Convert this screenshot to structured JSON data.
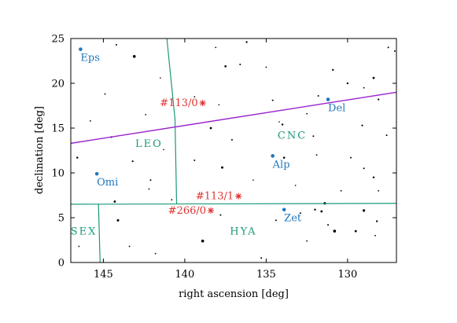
{
  "chart_data": {
    "type": "scatter",
    "xlabel": "right ascension [deg]",
    "ylabel": "declination [deg]",
    "xlim": [
      147,
      127
    ],
    "ylim": [
      0,
      25
    ],
    "x_ticks": [
      145,
      140,
      135,
      130
    ],
    "y_ticks": [
      0,
      5,
      10,
      15,
      20,
      25
    ],
    "grid": false,
    "colors": {
      "constellation": "#1a9a7a",
      "ecliptic": "#9a22cc",
      "named_star": "#2277bb",
      "marker": "#e03030",
      "field_star": "#000000"
    },
    "ecliptic_line": [
      [
        147,
        13.3
      ],
      [
        127,
        19.0
      ]
    ],
    "boundary_lines": [
      [
        [
          141.1,
          25
        ],
        [
          140.6,
          16.0
        ],
        [
          140.5,
          6.5
        ]
      ],
      [
        [
          147,
          6.5
        ],
        [
          127,
          6.6
        ]
      ],
      [
        [
          145.3,
          6.5
        ],
        [
          145.2,
          0
        ]
      ]
    ],
    "constellation_labels": [
      {
        "text": "LEO",
        "x": 142.2,
        "y": 12.9
      },
      {
        "text": "CNC",
        "x": 133.4,
        "y": 13.8
      },
      {
        "text": "HYA",
        "x": 136.4,
        "y": 3.1
      },
      {
        "text": "SEX",
        "x": 146.2,
        "y": 3.1
      }
    ],
    "named_stars": [
      {
        "name": "Eps",
        "x": 146.4,
        "y": 23.8
      },
      {
        "name": "Del",
        "x": 131.2,
        "y": 18.2
      },
      {
        "name": "Alp",
        "x": 134.6,
        "y": 11.9
      },
      {
        "name": "Omi",
        "x": 145.4,
        "y": 9.9
      },
      {
        "name": "Zet",
        "x": 133.9,
        "y": 5.9
      }
    ],
    "markers": [
      {
        "label": "#113/0",
        "x": 138.9,
        "y": 17.8
      },
      {
        "label": "#113/1",
        "x": 136.7,
        "y": 7.4
      },
      {
        "label": "#266/0",
        "x": 138.4,
        "y": 5.8
      }
    ],
    "field_stars": [
      [
        146.6,
        11.7,
        1.2
      ],
      [
        144.2,
        24.3,
        1.0
      ],
      [
        144.9,
        18.8,
        0.9
      ],
      [
        143.1,
        23.0,
        1.8
      ],
      [
        142.4,
        16.5,
        0.9
      ],
      [
        144.5,
        14.0,
        1.2
      ],
      [
        143.2,
        11.3,
        1.1
      ],
      [
        142.1,
        9.2,
        1.0
      ],
      [
        142.2,
        8.2,
        0.9
      ],
      [
        144.3,
        6.8,
        1.4
      ],
      [
        144.1,
        4.7,
        1.5
      ],
      [
        146.5,
        1.8,
        0.9
      ],
      [
        143.4,
        1.8,
        0.9
      ],
      [
        141.8,
        1.0,
        0.9
      ],
      [
        139.4,
        18.5,
        0.9
      ],
      [
        137.9,
        17.6,
        0.8
      ],
      [
        138.4,
        15.0,
        1.4
      ],
      [
        137.1,
        13.7,
        1.0
      ],
      [
        139.4,
        11.4,
        1.0
      ],
      [
        137.7,
        10.6,
        1.5
      ],
      [
        136.6,
        22.1,
        1.0
      ],
      [
        137.5,
        21.9,
        1.3
      ],
      [
        136.2,
        24.6,
        1.2
      ],
      [
        135.0,
        21.8,
        0.9
      ],
      [
        134.6,
        18.1,
        1.0
      ],
      [
        134.0,
        15.4,
        1.2
      ],
      [
        134.2,
        15.7,
        0.8
      ],
      [
        132.5,
        16.6,
        0.9
      ],
      [
        133.9,
        11.7,
        1.3
      ],
      [
        132.1,
        14.1,
        1.0
      ],
      [
        131.9,
        12.0,
        0.9
      ],
      [
        130.9,
        21.5,
        1.2
      ],
      [
        131.8,
        18.6,
        1.0
      ],
      [
        130.0,
        20.0,
        1.2
      ],
      [
        129.0,
        19.5,
        0.9
      ],
      [
        128.4,
        20.6,
        1.4
      ],
      [
        128.1,
        18.2,
        1.1
      ],
      [
        129.8,
        11.7,
        1.0
      ],
      [
        130.4,
        8.0,
        0.9
      ],
      [
        129.0,
        10.5,
        1.0
      ],
      [
        128.4,
        9.5,
        1.2
      ],
      [
        128.1,
        8.0,
        0.9
      ],
      [
        127.6,
        14.2,
        1.0
      ],
      [
        129.1,
        15.3,
        1.1
      ],
      [
        131.4,
        6.6,
        1.6
      ],
      [
        131.6,
        5.7,
        1.4
      ],
      [
        132.0,
        5.9,
        1.2
      ],
      [
        130.8,
        3.5,
        1.8
      ],
      [
        129.5,
        3.5,
        1.4
      ],
      [
        129.0,
        5.8,
        1.6
      ],
      [
        128.2,
        4.6,
        1.2
      ],
      [
        128.3,
        3.0,
        0.9
      ],
      [
        131.2,
        4.2,
        1.0
      ],
      [
        132.9,
        5.5,
        1.0
      ],
      [
        132.5,
        2.4,
        0.9
      ],
      [
        134.4,
        4.7,
        1.0
      ],
      [
        135.3,
        0.5,
        1.0
      ],
      [
        138.9,
        2.4,
        1.8
      ],
      [
        137.8,
        5.3,
        1.0
      ],
      [
        140.8,
        7.0,
        0.9
      ],
      [
        141.3,
        12.6,
        0.8
      ],
      [
        138.1,
        24.0,
        0.9
      ],
      [
        127.5,
        24.0,
        1.0
      ],
      [
        127.1,
        23.6,
        1.0
      ],
      [
        145.8,
        15.8,
        0.9
      ],
      [
        141.5,
        20.6,
        0.8
      ],
      [
        133.2,
        8.6,
        0.8
      ],
      [
        135.8,
        9.2,
        0.8
      ]
    ]
  }
}
